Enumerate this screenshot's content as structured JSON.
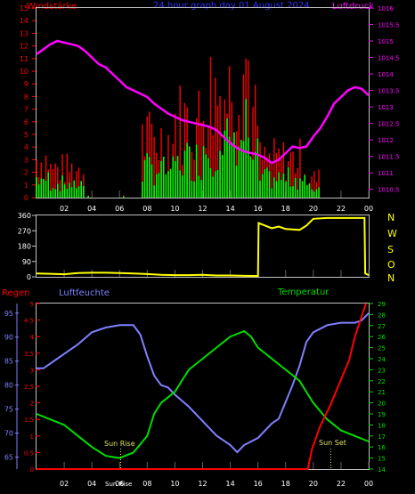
{
  "header": {
    "left_label": "Windstärke",
    "title": "24 hour graph day  01 August 2024",
    "right_label": "Luftdruck"
  },
  "direction_letters": [
    "N",
    "W",
    "S",
    "O",
    "N"
  ],
  "lower_labels": {
    "rain": "Regen",
    "humidity": "Luftfeuchte",
    "temperature": "Temperatur",
    "sunrise": "Sun Rise",
    "sunset": "Sun Set",
    "sun_axis_mark": "Sun Rise"
  },
  "colors": {
    "wind_gust": "#ff0000",
    "wind_avg": "#00ff00",
    "pressure": "#ff00ff",
    "direction": "#ffff00",
    "rain": "#ff0000",
    "humidity": "#8080ff",
    "temperature": "#00dd00",
    "title": "#3030ff",
    "axis": "#c0c0c0"
  },
  "chart_data": [
    {
      "type": "bar",
      "x_ticks": [
        "02",
        "04",
        "06",
        "08",
        "10",
        "12",
        "14",
        "16",
        "18",
        "20",
        "22",
        "00"
      ],
      "left_axis": {
        "ticks": [
          0,
          1,
          2,
          3,
          4,
          5,
          6,
          7,
          8,
          9,
          10,
          11,
          12,
          13,
          14,
          15
        ],
        "ylim": [
          0,
          15
        ]
      },
      "right_axis": {
        "ticks": [
          "1010.5",
          "1011",
          "1011.5",
          "1012",
          "1012.5",
          "1013",
          "1013.5",
          "1014",
          "1014.5",
          "1015",
          "1015.5",
          "1016"
        ],
        "ylim": [
          1010.25,
          1016
        ]
      },
      "series": [
        {
          "name": "Windstärke",
          "kind": "gust"
        },
        {
          "name": "Windstärke",
          "kind": "average"
        },
        {
          "name": "Luftdruck",
          "kind": "line",
          "points": [
            [
              0,
              1014.6
            ],
            [
              0.5,
              1014.75
            ],
            [
              1,
              1014.9
            ],
            [
              1.5,
              1015.0
            ],
            [
              2,
              1014.95
            ],
            [
              2.5,
              1014.9
            ],
            [
              3,
              1014.85
            ],
            [
              3.5,
              1014.7
            ],
            [
              4,
              1014.5
            ],
            [
              4.5,
              1014.3
            ],
            [
              5,
              1014.2
            ],
            [
              5.5,
              1014.0
            ],
            [
              6,
              1013.8
            ],
            [
              6.5,
              1013.6
            ],
            [
              7,
              1013.5
            ],
            [
              7.5,
              1013.4
            ],
            [
              8,
              1013.3
            ],
            [
              8.5,
              1013.1
            ],
            [
              9,
              1012.95
            ],
            [
              9.5,
              1012.8
            ],
            [
              10,
              1012.7
            ],
            [
              10.5,
              1012.6
            ],
            [
              11,
              1012.55
            ],
            [
              11.5,
              1012.5
            ],
            [
              12,
              1012.45
            ],
            [
              12.5,
              1012.4
            ],
            [
              13,
              1012.3
            ],
            [
              13.5,
              1012.1
            ],
            [
              14,
              1011.9
            ],
            [
              14.5,
              1011.75
            ],
            [
              15,
              1011.65
            ],
            [
              15.5,
              1011.6
            ],
            [
              16,
              1011.55
            ],
            [
              16.5,
              1011.45
            ],
            [
              17,
              1011.3
            ],
            [
              17.5,
              1011.4
            ],
            [
              18,
              1011.6
            ],
            [
              18.5,
              1011.8
            ],
            [
              19,
              1011.75
            ],
            [
              19.5,
              1011.8
            ],
            [
              20,
              1012.1
            ],
            [
              20.5,
              1012.35
            ],
            [
              21,
              1012.7
            ],
            [
              21.5,
              1013.1
            ],
            [
              22,
              1013.3
            ],
            [
              22.5,
              1013.5
            ],
            [
              23,
              1013.6
            ],
            [
              23.5,
              1013.55
            ],
            [
              24,
              1013.35
            ]
          ]
        }
      ]
    },
    {
      "type": "line",
      "x_ticks": [
        "02",
        "04",
        "06",
        "08",
        "10",
        "12",
        "14",
        "16",
        "18",
        "20",
        "22",
        "00"
      ],
      "left_axis": {
        "ticks": [
          0,
          90,
          180,
          270,
          360
        ],
        "ylim": [
          0,
          360
        ]
      },
      "series": [
        {
          "name": "direction",
          "points": [
            [
              0,
              20
            ],
            [
              1,
              18
            ],
            [
              2,
              15
            ],
            [
              3,
              22
            ],
            [
              4,
              24
            ],
            [
              5,
              24
            ],
            [
              6,
              22
            ],
            [
              7,
              20
            ],
            [
              8,
              16
            ],
            [
              9,
              12
            ],
            [
              10,
              10
            ],
            [
              11,
              10
            ],
            [
              12,
              12
            ],
            [
              13,
              8
            ],
            [
              14,
              8
            ],
            [
              15,
              6
            ],
            [
              16,
              5
            ],
            [
              16.05,
              315
            ],
            [
              17,
              285
            ],
            [
              17.5,
              295
            ],
            [
              18,
              280
            ],
            [
              19,
              275
            ],
            [
              19.5,
              300
            ],
            [
              20,
              340
            ],
            [
              21,
              345
            ],
            [
              22,
              345
            ],
            [
              23,
              345
            ],
            [
              23.7,
              345
            ],
            [
              23.75,
              20
            ],
            [
              24,
              10
            ]
          ]
        }
      ]
    },
    {
      "type": "line",
      "x_ticks": [
        "02",
        "04",
        "06",
        "08",
        "10",
        "12",
        "14",
        "16",
        "18",
        "20",
        "22",
        "00"
      ],
      "axes": {
        "rain": {
          "ticks": [
            "0",
            "0.5",
            "1",
            "1.5",
            "2",
            "2.5",
            "3",
            "3.5",
            "4",
            "4.5",
            "5"
          ],
          "ylim": [
            0,
            5
          ]
        },
        "humidity": {
          "ticks": [
            "65",
            "70",
            "75",
            "80",
            "85",
            "90",
            "95"
          ],
          "ylim": [
            62.5,
            97
          ]
        },
        "temperature": {
          "ticks": [
            "14",
            "15",
            "16",
            "17",
            "18",
            "19",
            "20",
            "21",
            "22",
            "23",
            "24",
            "25",
            "26",
            "27",
            "28",
            "29"
          ],
          "ylim": [
            14,
            29
          ]
        }
      },
      "series": [
        {
          "name": "Regen",
          "points": [
            [
              0,
              0
            ],
            [
              19.6,
              0
            ],
            [
              19.9,
              0.6
            ],
            [
              20.5,
              1.3
            ],
            [
              21.2,
              1.9
            ],
            [
              22,
              2.7
            ],
            [
              22.6,
              3.3
            ],
            [
              23,
              4.0
            ],
            [
              23.4,
              4.5
            ],
            [
              23.8,
              5.0
            ]
          ]
        },
        {
          "name": "Luftfeuchte",
          "points": [
            [
              0,
              83.5
            ],
            [
              0.5,
              83.5
            ],
            [
              1,
              84.5
            ],
            [
              1.5,
              85.5
            ],
            [
              2,
              86.5
            ],
            [
              3,
              88.5
            ],
            [
              4,
              91
            ],
            [
              5,
              92
            ],
            [
              6,
              92.5
            ],
            [
              7,
              92.5
            ],
            [
              7.5,
              90.5
            ],
            [
              8,
              86
            ],
            [
              8.5,
              82
            ],
            [
              9,
              80
            ],
            [
              9.5,
              79.5
            ],
            [
              10,
              78
            ],
            [
              11,
              75.5
            ],
            [
              12,
              72.5
            ],
            [
              13,
              69.5
            ],
            [
              14,
              67.5
            ],
            [
              14.5,
              66
            ],
            [
              15,
              67.5
            ],
            [
              16,
              69
            ],
            [
              17,
              72
            ],
            [
              17.5,
              73
            ],
            [
              18,
              76.5
            ],
            [
              18.5,
              80
            ],
            [
              19,
              84
            ],
            [
              19.5,
              89
            ],
            [
              20,
              91
            ],
            [
              21,
              92.5
            ],
            [
              22,
              93
            ],
            [
              23,
              93
            ],
            [
              23.5,
              93.5
            ],
            [
              24,
              95
            ]
          ]
        },
        {
          "name": "Temperatur",
          "points": [
            [
              0,
              19
            ],
            [
              1,
              18.5
            ],
            [
              2,
              18
            ],
            [
              3,
              17
            ],
            [
              4,
              16
            ],
            [
              5,
              15.2
            ],
            [
              6,
              15
            ],
            [
              7,
              15.5
            ],
            [
              8,
              17
            ],
            [
              8.5,
              19
            ],
            [
              9,
              20
            ],
            [
              10,
              21
            ],
            [
              11,
              23
            ],
            [
              12,
              24
            ],
            [
              13,
              25
            ],
            [
              14,
              26
            ],
            [
              15,
              26.5
            ],
            [
              15.5,
              26
            ],
            [
              16,
              25
            ],
            [
              17,
              24
            ],
            [
              18,
              23
            ],
            [
              19,
              22
            ],
            [
              20,
              20
            ],
            [
              21,
              18.5
            ],
            [
              22,
              17.5
            ],
            [
              23,
              17
            ],
            [
              24,
              16.5
            ]
          ]
        }
      ]
    }
  ]
}
